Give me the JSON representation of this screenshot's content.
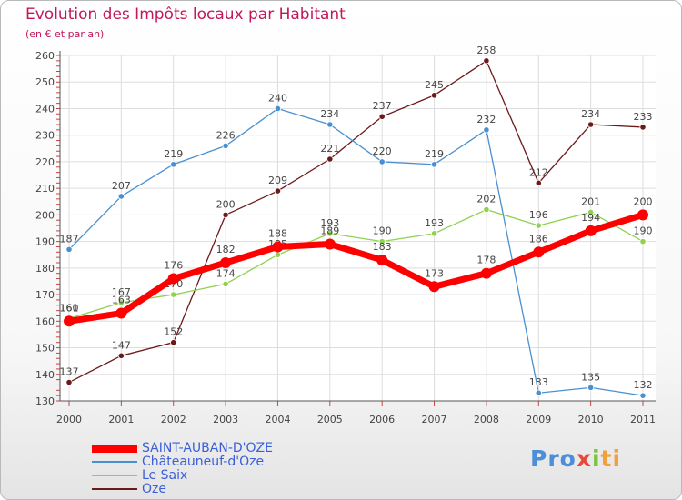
{
  "chart_data": {
    "type": "line",
    "title": "Evolution des Impôts locaux par Habitant",
    "subtitle": "(en € et par an)",
    "x": [
      "2000",
      "2001",
      "2002",
      "2003",
      "2004",
      "2005",
      "2006",
      "2007",
      "2008",
      "2009",
      "2010",
      "2011"
    ],
    "ylim": [
      130,
      260
    ],
    "yticks": [
      "130",
      "140",
      "150",
      "160",
      "170",
      "180",
      "190",
      "200",
      "210",
      "220",
      "230",
      "240",
      "250",
      "260"
    ],
    "grid": true,
    "legend_position": "bottom-left",
    "series": [
      {
        "name": "SAINT-AUBAN-D'OZE",
        "color": "#ff0000",
        "values": [
          160,
          163,
          176,
          182,
          188,
          189,
          183,
          173,
          178,
          186,
          194,
          200
        ]
      },
      {
        "name": "Châteauneuf-d'Oze",
        "color": "#4a90d0",
        "values": [
          187,
          207,
          219,
          226,
          240,
          234,
          220,
          219,
          232,
          133,
          135,
          132
        ]
      },
      {
        "name": "Le Saix",
        "color": "#8fd14f",
        "values": [
          161,
          167,
          170,
          174,
          185,
          193,
          190,
          193,
          202,
          196,
          201,
          190
        ]
      },
      {
        "name": "Oze",
        "color": "#6b1a1a",
        "values": [
          137,
          147,
          152,
          200,
          209,
          221,
          237,
          245,
          258,
          212,
          234,
          233
        ]
      }
    ]
  },
  "brand": {
    "p1": "Pro",
    "p2": "x",
    "p3": "i",
    "p4": "ti"
  }
}
